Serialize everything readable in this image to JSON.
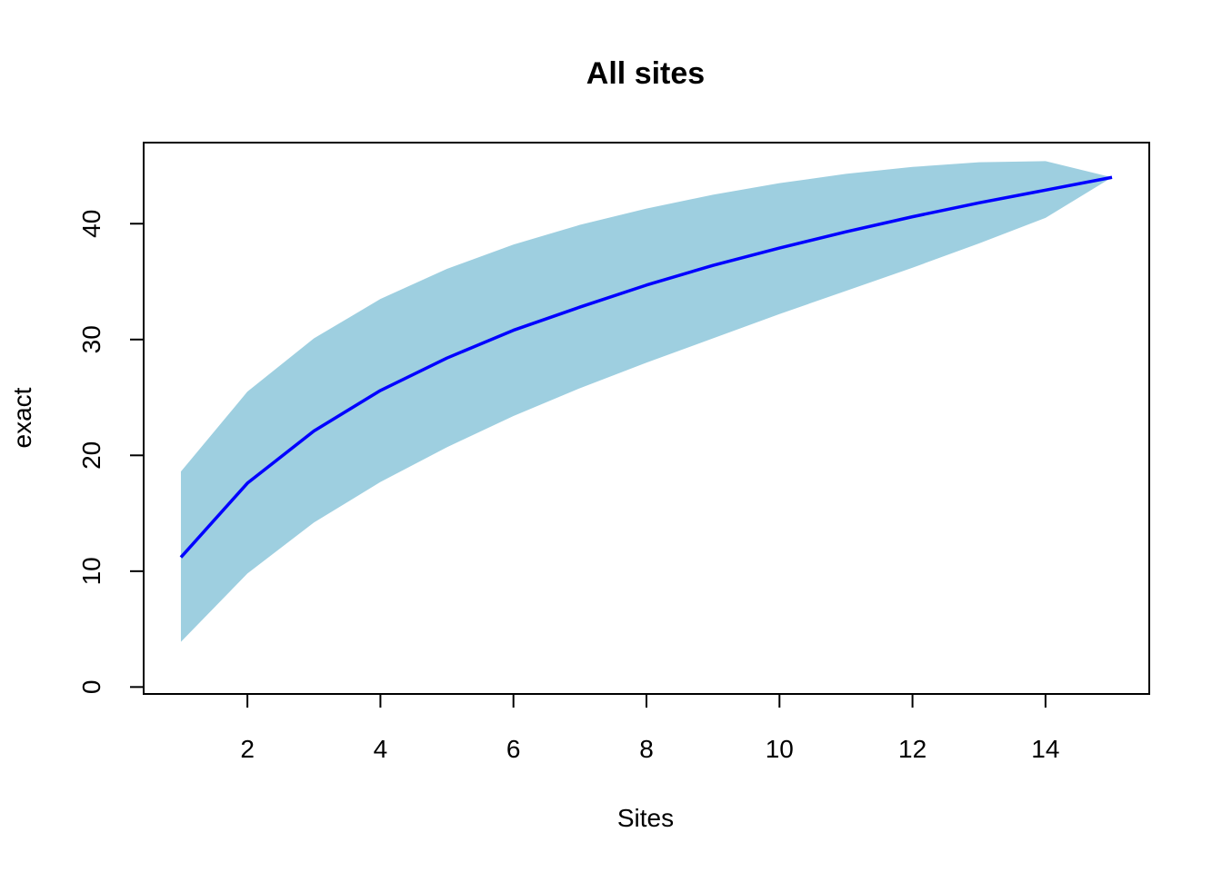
{
  "chart_data": {
    "type": "area",
    "title": "All sites",
    "xlabel": "Sites",
    "ylabel": "exact",
    "x": [
      1,
      2,
      3,
      4,
      5,
      6,
      7,
      8,
      9,
      10,
      11,
      12,
      13,
      14,
      15
    ],
    "series": [
      {
        "role": "band_upper",
        "values": [
          18.6,
          25.5,
          30.1,
          33.5,
          36.1,
          38.2,
          39.9,
          41.3,
          42.5,
          43.5,
          44.3,
          44.9,
          45.3,
          45.4,
          44.0
        ]
      },
      {
        "role": "band_lower",
        "values": [
          3.9,
          9.8,
          14.2,
          17.7,
          20.7,
          23.4,
          25.8,
          28.0,
          30.1,
          32.2,
          34.2,
          36.2,
          38.3,
          40.5,
          44.0
        ]
      },
      {
        "role": "line",
        "values": [
          11.2,
          17.6,
          22.1,
          25.6,
          28.4,
          30.8,
          32.8,
          34.7,
          36.4,
          37.9,
          39.3,
          40.6,
          41.8,
          42.9,
          44.0
        ]
      }
    ],
    "xlim": [
      0.44,
      15.56
    ],
    "ylim": [
      -0.6,
      47.0
    ],
    "xticks": [
      2,
      4,
      6,
      8,
      10,
      12,
      14
    ],
    "yticks": [
      0,
      10,
      20,
      30,
      40
    ],
    "band_color": "#9ecfe0",
    "line_color": "#0000ff",
    "grid": false
  }
}
